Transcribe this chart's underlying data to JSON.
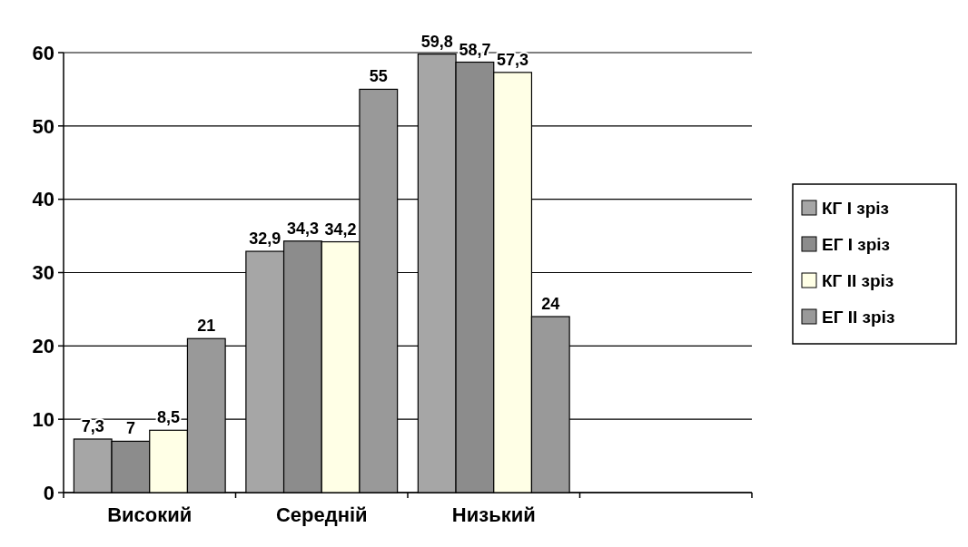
{
  "chart_data": {
    "type": "bar",
    "categories": [
      "Високий",
      "Середній",
      "Низький",
      null
    ],
    "series": [
      {
        "name": "КГ І зріз",
        "color": "#a6a6a6",
        "values": [
          7.3,
          32.9,
          59.8,
          null
        ],
        "value_labels": [
          "7,3",
          "32,9",
          "59,8",
          null
        ]
      },
      {
        "name": "ЕГ І зріз",
        "color": "#8c8c8c",
        "values": [
          7,
          34.3,
          58.7,
          null
        ],
        "value_labels": [
          "7",
          "34,3",
          "58,7",
          null
        ]
      },
      {
        "name": "КГ ІІ зріз",
        "color": "#ffffe6",
        "values": [
          8.5,
          34.2,
          57.3,
          null
        ],
        "value_labels": [
          "8,5",
          "34,2",
          "57,3",
          null
        ]
      },
      {
        "name": "ЕГ ІІ зріз",
        "color": "#999999",
        "values": [
          21,
          55,
          24,
          null
        ],
        "value_labels": [
          "21",
          "55",
          "24",
          null
        ]
      }
    ],
    "ylim": [
      0,
      60
    ],
    "yticks": [
      0,
      10,
      20,
      30,
      40,
      50,
      60
    ],
    "grid": "y",
    "legend": "right"
  }
}
